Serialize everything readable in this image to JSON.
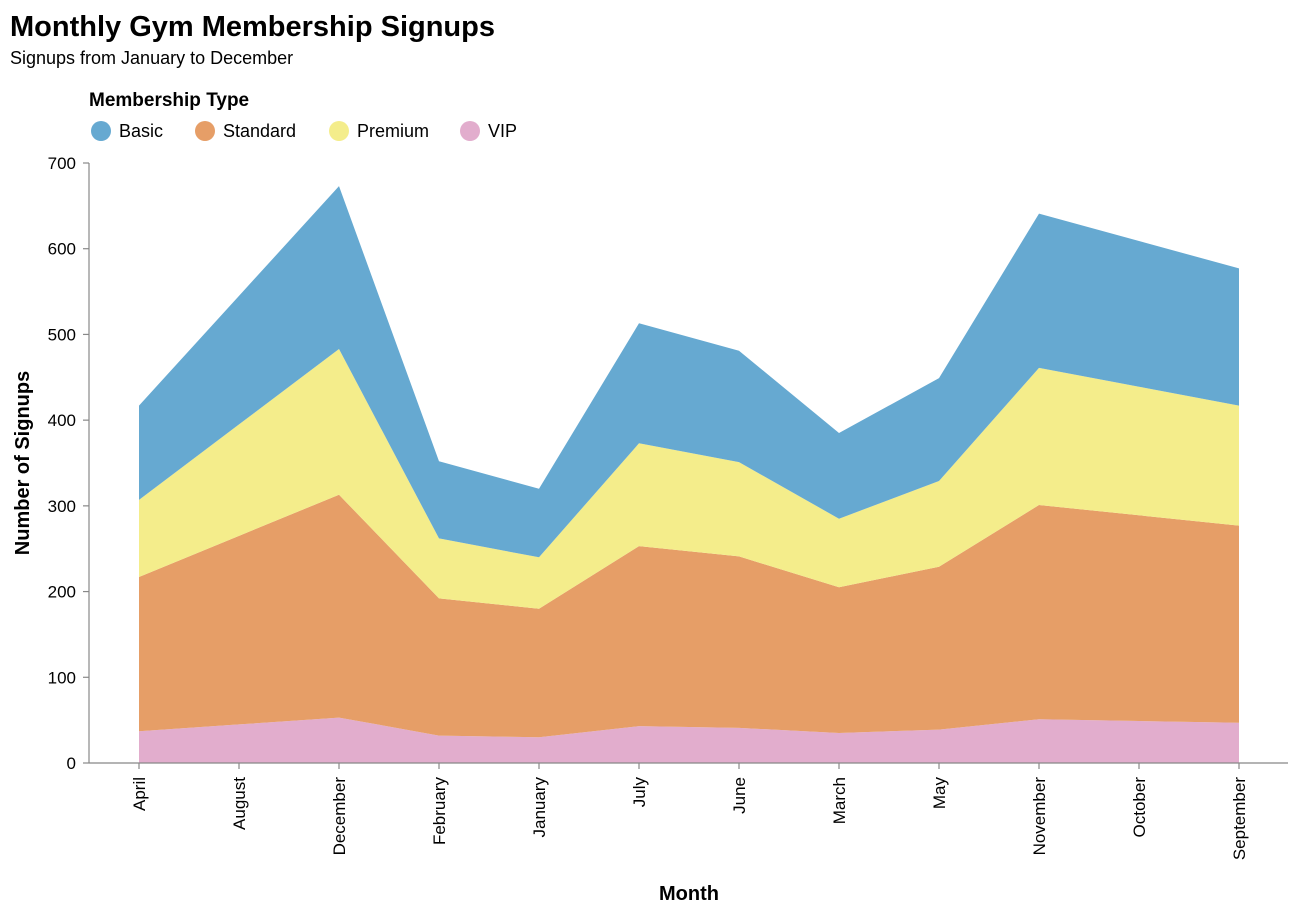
{
  "chart_data": {
    "type": "area",
    "stacked": true,
    "title": "Monthly Gym Membership Signups",
    "subtitle": "Signups from January to December",
    "xlabel": "Month",
    "ylabel": "Number of Signups",
    "ylim": [
      0,
      700
    ],
    "yticks": [
      0,
      100,
      200,
      300,
      400,
      500,
      600,
      700
    ],
    "grid": false,
    "legend": {
      "title": "Membership Type",
      "placement": "top-left"
    },
    "categories": [
      "April",
      "August",
      "December",
      "February",
      "January",
      "July",
      "June",
      "March",
      "May",
      "November",
      "October",
      "September"
    ],
    "series": [
      {
        "name": "VIP",
        "color": "#e2adcd",
        "values": [
          37,
          45,
          53,
          32,
          30,
          43,
          41,
          35,
          39,
          51,
          49,
          47
        ]
      },
      {
        "name": "Standard",
        "color": "#e69e67",
        "values": [
          180,
          220,
          260,
          160,
          150,
          210,
          200,
          170,
          190,
          250,
          240,
          230
        ]
      },
      {
        "name": "Premium",
        "color": "#f4ed8b",
        "values": [
          90,
          130,
          170,
          70,
          60,
          120,
          110,
          80,
          100,
          160,
          150,
          140
        ]
      },
      {
        "name": "Basic",
        "color": "#66a9d1",
        "values": [
          110,
          150,
          190,
          90,
          80,
          140,
          130,
          100,
          120,
          180,
          170,
          160
        ]
      }
    ],
    "legend_order": [
      "Basic",
      "Standard",
      "Premium",
      "VIP"
    ]
  }
}
